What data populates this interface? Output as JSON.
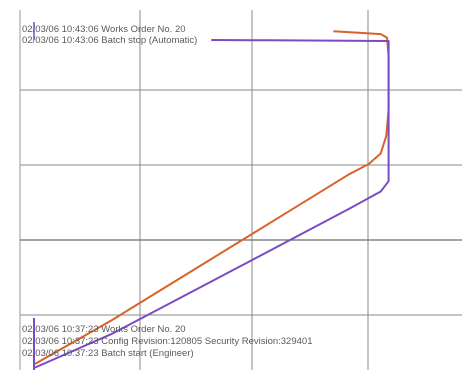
{
  "chart_data": {
    "type": "line",
    "title": "",
    "xlabel": "",
    "ylabel": "",
    "grid": true,
    "x_range": [
      0,
      100
    ],
    "y_range": [
      0,
      100
    ],
    "colors": {
      "grid": "#8a8a8a",
      "frame": "#9a9a9a",
      "series_orange": "#d9622b",
      "series_purple": "#7a4cc4"
    },
    "series": [
      {
        "color_key": "series_orange",
        "points": [
          [
            0,
            1
          ],
          [
            20,
            14
          ],
          [
            40,
            28
          ],
          [
            60,
            42
          ],
          [
            80,
            56
          ],
          [
            85,
            59
          ],
          [
            88,
            62
          ],
          [
            89.4,
            67
          ],
          [
            89.8,
            72
          ],
          [
            90,
            75
          ],
          [
            90,
            80
          ],
          [
            90,
            90
          ],
          [
            89.6,
            95.5
          ],
          [
            88,
            96.5
          ],
          [
            84,
            96.8
          ],
          [
            76,
            97.3
          ]
        ]
      },
      {
        "color_key": "series_purple",
        "points": [
          [
            0,
            0
          ],
          [
            20,
            10
          ],
          [
            40,
            22
          ],
          [
            60,
            34
          ],
          [
            80,
            46
          ],
          [
            88,
            51
          ],
          [
            90,
            54
          ],
          [
            90,
            60
          ],
          [
            90,
            70
          ],
          [
            90,
            80
          ],
          [
            90,
            90
          ],
          [
            90,
            94.5
          ],
          [
            80,
            94.6
          ],
          [
            60,
            94.7
          ],
          [
            45,
            94.8
          ]
        ]
      }
    ],
    "events": [
      {
        "text": "02/03/06 10:43:06 Works Order No. 20"
      },
      {
        "text": "02/03/06 10:43:06 Batch stop (Automatic)"
      },
      {
        "text": "02/03/06 10:37:23 Works Order No. 20"
      },
      {
        "text": "02/03/06 10:37:23 Config Revision:120805 Security Revision:329401"
      },
      {
        "text": "02/03/06 10:37:23 Batch start (Engineer)"
      }
    ]
  }
}
